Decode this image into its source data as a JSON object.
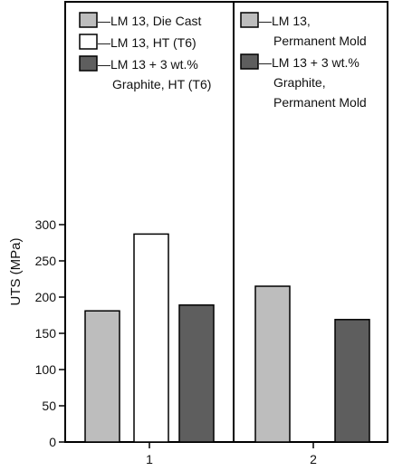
{
  "chart_data": {
    "type": "bar",
    "ylabel": "UTS (MPa)",
    "ylim": [
      0,
      345
    ],
    "yticks": [
      0,
      50,
      100,
      150,
      200,
      250,
      300
    ],
    "categories": [
      "1",
      "2"
    ],
    "panels": [
      {
        "category": "1",
        "bars": [
          {
            "series": "LM 13, Die Cast",
            "value": 181,
            "color": "#bdbdbd"
          },
          {
            "series": "LM 13, HT (T6)",
            "value": 287,
            "color": "#ffffff"
          },
          {
            "series": "LM 13 + 3 wt.% Graphite, HT (T6)",
            "value": 189,
            "color": "#5e5e5e"
          }
        ],
        "legend": [
          {
            "lines": [
              "—LM 13, Die Cast"
            ],
            "color": "#bdbdbd"
          },
          {
            "lines": [
              "—LM 13, HT (T6)"
            ],
            "color": "#ffffff"
          },
          {
            "lines": [
              "—LM 13 + 3 wt.%",
              "Graphite, HT (T6)"
            ],
            "color": "#5e5e5e"
          }
        ]
      },
      {
        "category": "2",
        "bars": [
          {
            "series": "LM 13, Permanent Mold",
            "value": 215,
            "color": "#bdbdbd"
          },
          {
            "series": "LM 13 + 3 wt.% Graphite, Permanent Mold",
            "value": 169,
            "color": "#5e5e5e"
          }
        ],
        "legend": [
          {
            "lines": [
              "—LM 13,",
              "Permanent Mold"
            ],
            "color": "#bdbdbd"
          },
          {
            "lines": [
              "—LM 13 + 3 wt.%",
              "Graphite,",
              "Permanent Mold"
            ],
            "color": "#5e5e5e"
          }
        ]
      }
    ]
  }
}
